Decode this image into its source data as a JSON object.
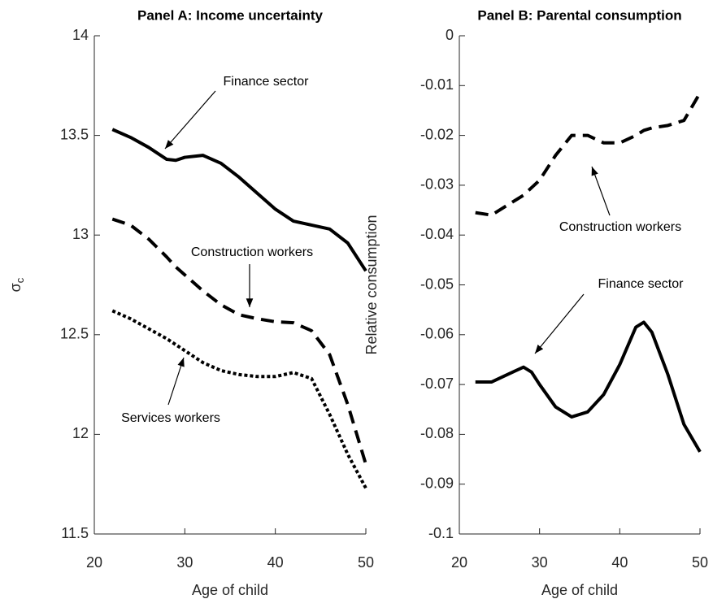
{
  "chart_data": [
    {
      "type": "line",
      "title": "Panel A: Income uncertainty",
      "xlabel": "Age of child",
      "ylabel": "σ",
      "ylabel_sub": "c",
      "x": [
        22,
        24,
        26,
        28,
        29,
        30,
        32,
        34,
        36,
        38,
        40,
        42,
        44,
        46,
        48,
        50
      ],
      "series": [
        {
          "name": "Finance sector",
          "color": "#000000",
          "style": "solid",
          "values": [
            13.53,
            13.49,
            13.44,
            13.38,
            13.375,
            13.39,
            13.4,
            13.36,
            13.29,
            13.21,
            13.13,
            13.07,
            13.05,
            13.03,
            12.96,
            12.82
          ]
        },
        {
          "name": "Construction workers",
          "color": "#000000",
          "style": "dashed",
          "values": [
            13.08,
            13.05,
            12.98,
            12.89,
            12.84,
            12.8,
            12.72,
            12.65,
            12.6,
            12.58,
            12.565,
            12.56,
            12.52,
            12.4,
            12.15,
            11.85
          ]
        },
        {
          "name": "Services workers",
          "color": "#000000",
          "style": "dotted",
          "values": [
            12.62,
            12.58,
            12.53,
            12.48,
            12.45,
            12.42,
            12.36,
            12.32,
            12.3,
            12.29,
            12.29,
            12.31,
            12.28,
            12.1,
            11.9,
            11.73
          ]
        }
      ],
      "xlim": [
        20,
        50
      ],
      "xticks": [
        20,
        30,
        40,
        50
      ],
      "ylim": [
        11.5,
        14
      ],
      "yticks": [
        11.5,
        12,
        12.5,
        13,
        13.5,
        14
      ]
    },
    {
      "type": "line",
      "title": "Panel B: Parental consumption",
      "xlabel": "Age of child",
      "ylabel": "Relative consumption",
      "x": [
        22,
        24,
        26,
        28,
        29,
        30,
        32,
        34,
        36,
        38,
        40,
        42,
        43,
        44,
        46,
        48,
        50
      ],
      "series": [
        {
          "name": "Construction workers",
          "color": "#000000",
          "style": "dashed",
          "values": [
            -0.0355,
            -0.036,
            -0.034,
            -0.032,
            -0.0305,
            -0.029,
            -0.024,
            -0.02,
            -0.02,
            -0.0215,
            -0.0215,
            -0.02,
            -0.019,
            -0.0185,
            -0.018,
            -0.017,
            -0.0115
          ]
        },
        {
          "name": "Finance sector",
          "color": "#000000",
          "style": "solid",
          "values": [
            -0.0695,
            -0.0695,
            -0.068,
            -0.0665,
            -0.0675,
            -0.07,
            -0.0745,
            -0.0765,
            -0.0755,
            -0.072,
            -0.066,
            -0.0585,
            -0.0575,
            -0.0595,
            -0.068,
            -0.078,
            -0.0835
          ]
        }
      ],
      "xlim": [
        20,
        50
      ],
      "xticks": [
        20,
        30,
        40,
        50
      ],
      "ylim": [
        -0.1,
        0
      ],
      "yticks": [
        -0.1,
        -0.09,
        -0.08,
        -0.07,
        -0.06,
        -0.05,
        -0.04,
        -0.03,
        -0.02,
        -0.01,
        0
      ]
    }
  ]
}
